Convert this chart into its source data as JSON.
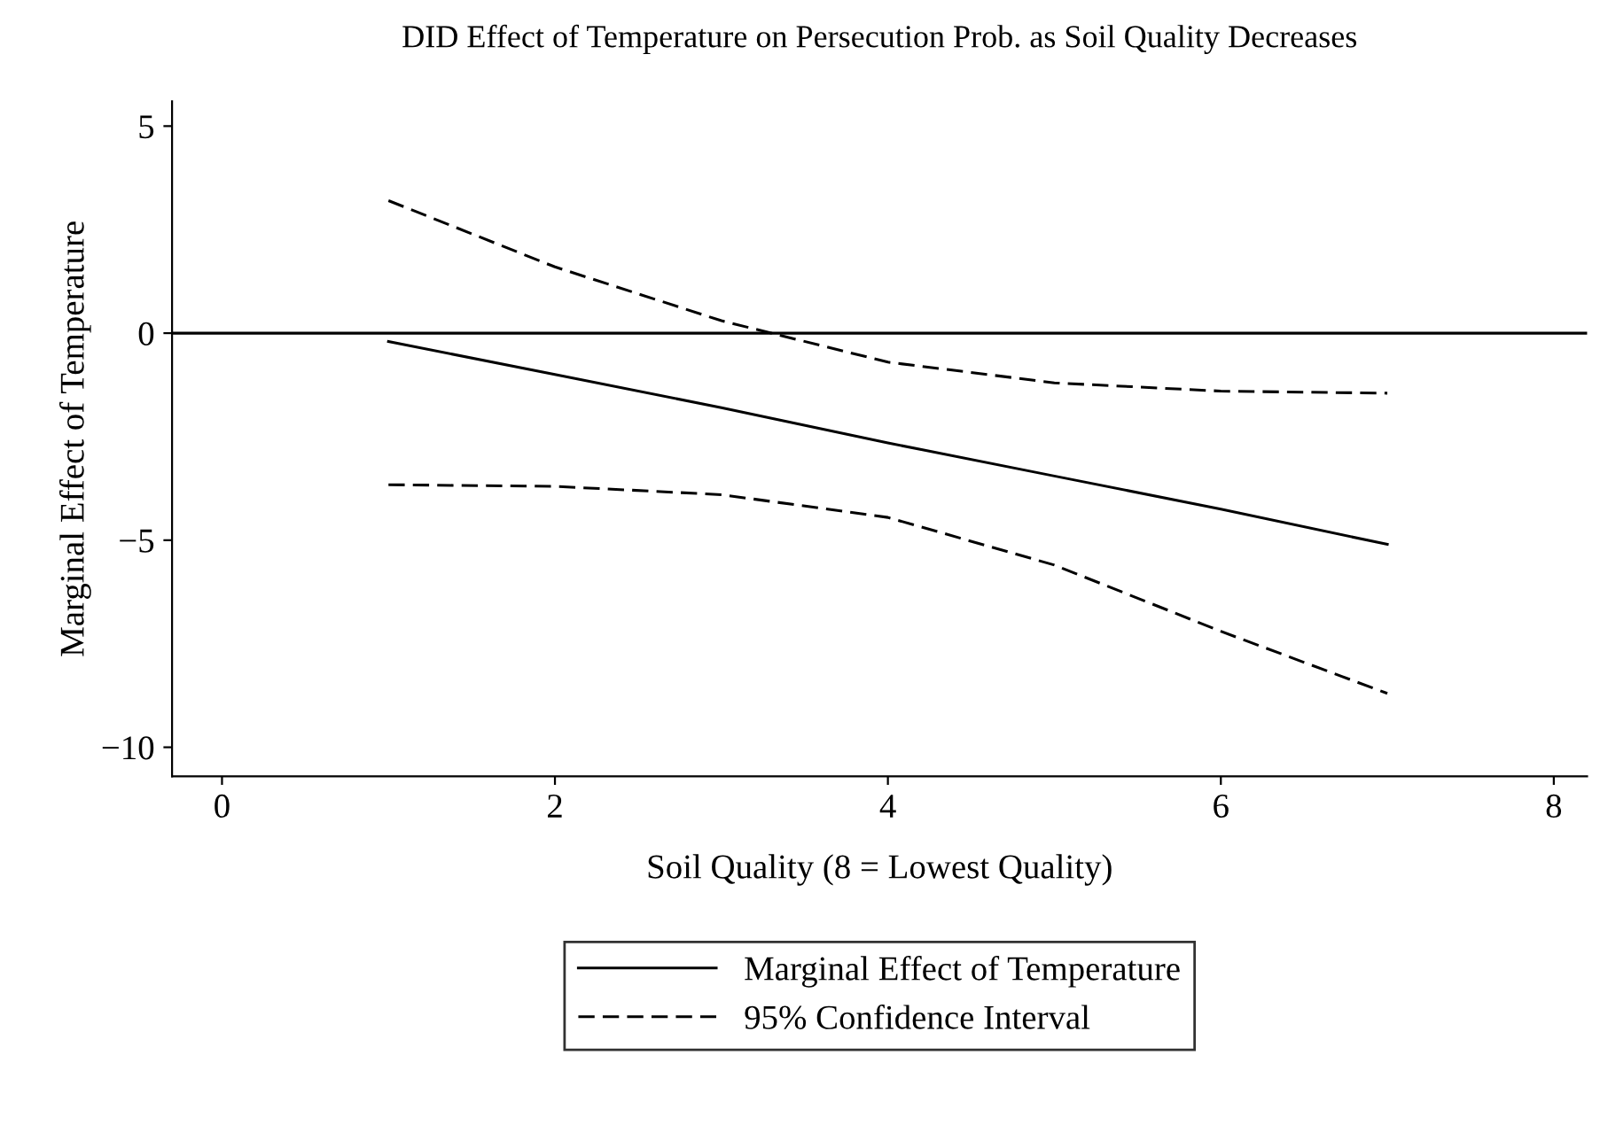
{
  "chart_data": {
    "type": "line",
    "title": "DID Effect of Temperature on Persecution Prob. as Soil Quality Decreases",
    "xlabel": "Soil Quality (8 = Lowest Quality)",
    "ylabel": "Marginal Effect of Temperature",
    "x": [
      1,
      2,
      3,
      4,
      5,
      6,
      7
    ],
    "series": [
      {
        "name": "Marginal Effect of Temperature",
        "color": "#000000",
        "line_style": "solid",
        "values": [
          -0.2,
          -1.0,
          -1.8,
          -2.65,
          -3.45,
          -4.25,
          -5.1
        ]
      },
      {
        "name": "95% Confidence Interval",
        "color": "#000000",
        "line_style": "dashed",
        "values": [
          3.2,
          1.6,
          0.3,
          -0.7,
          -1.2,
          -1.4,
          -1.45
        ]
      },
      {
        "color": "#000000",
        "line_style": "dashed",
        "values": [
          -3.66,
          -3.7,
          -3.9,
          -4.45,
          -5.6,
          -7.2,
          -8.7
        ]
      }
    ],
    "xlim": [
      -0.3,
      8.2
    ],
    "xticks": [
      0,
      2,
      4,
      6,
      8
    ],
    "ylim": [
      -10.7,
      5.6
    ],
    "yticks": [
      5,
      0,
      {
        "value": -5,
        "label": "−5"
      },
      {
        "value": -10,
        "label": "−10"
      }
    ],
    "ref_lines": [
      {
        "axis": "y",
        "value": 0,
        "color": "#000000",
        "line_style": "solid"
      }
    ],
    "grid": false,
    "legend": "bottom",
    "marker": "none"
  }
}
